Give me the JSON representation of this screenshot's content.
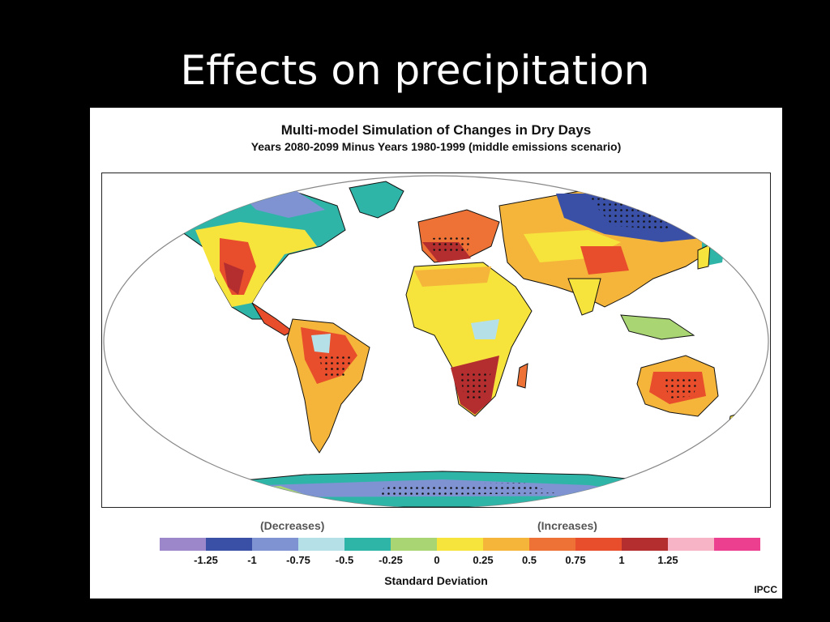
{
  "slide": {
    "title": "Effects on precipitation"
  },
  "figure": {
    "title": "Multi-model Simulation of Changes in Dry Days",
    "subtitle": "Years 2080-2099 Minus Years 1980-1999 (middle emissions scenario)",
    "source": "IPCC"
  },
  "legend": {
    "decreases_label": "(Decreases)",
    "increases_label": "(Increases)",
    "axis_label": "Standard Deviation",
    "colors": [
      "#9b87c9",
      "#3a50a6",
      "#7f93d3",
      "#b6e0e8",
      "#2fb5a8",
      "#a9d672",
      "#f6e43c",
      "#f5b53a",
      "#ee7236",
      "#e84e2c",
      "#b52e2f",
      "#f7b4c6",
      "#ec3f8f"
    ],
    "ticks": [
      "-1.25",
      "-1",
      "-0.75",
      "-0.5",
      "-0.25",
      "0",
      "0.25",
      "0.5",
      "0.75",
      "1",
      "1.25"
    ]
  }
}
